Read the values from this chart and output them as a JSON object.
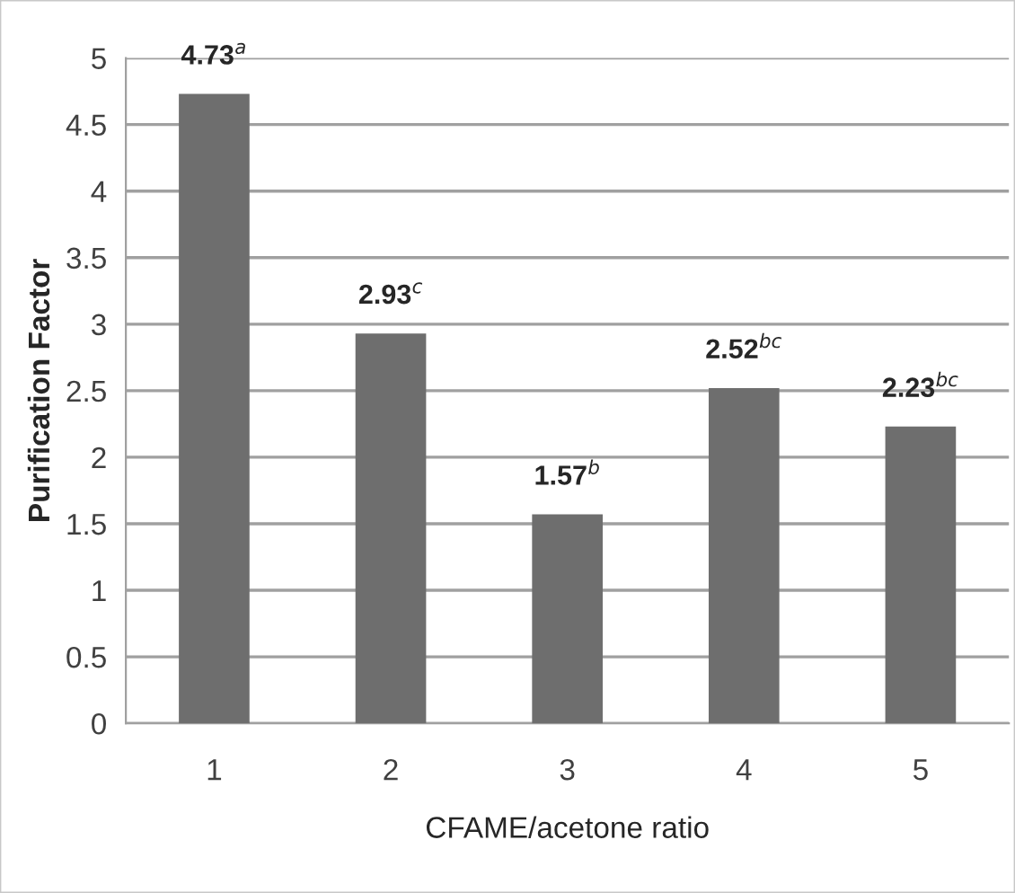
{
  "chart_data": {
    "type": "bar",
    "xlabel": "CFAME/acetone ratio",
    "ylabel": "Purification Factor",
    "categories": [
      "1",
      "2",
      "3",
      "4",
      "5"
    ],
    "values": [
      4.73,
      2.93,
      1.57,
      2.52,
      2.23
    ],
    "value_labels": [
      "4.73$^{a}$",
      "2.93$^{c}$",
      "1.57$^{b}$",
      "2.52$^{bc}$",
      "2.23$^{bc}$"
    ],
    "color": "#6e6e6e",
    "ylim": [
      0,
      5
    ],
    "yticks": [
      0,
      0.5,
      1,
      1.5,
      2,
      2.5,
      3,
      3.5,
      4,
      4.5,
      5
    ],
    "grid": "y",
    "legend": false
  }
}
